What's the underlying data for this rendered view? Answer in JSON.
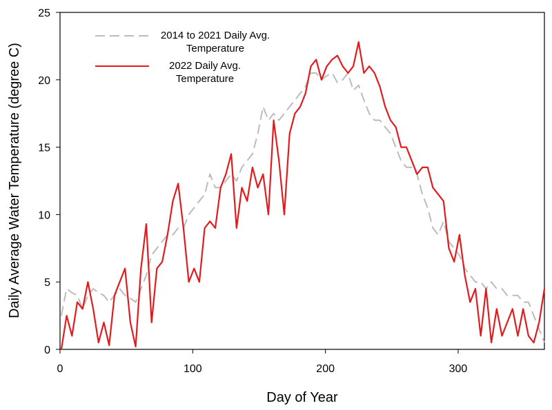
{
  "chart_data": {
    "type": "line",
    "x_label": "Day of Year",
    "y_label": "Daily Average Water Temperature (degree C)",
    "x": [
      1,
      5,
      9,
      13,
      17,
      21,
      25,
      29,
      33,
      37,
      41,
      45,
      49,
      53,
      57,
      61,
      65,
      69,
      73,
      77,
      81,
      85,
      89,
      93,
      97,
      101,
      105,
      109,
      113,
      117,
      121,
      125,
      129,
      133,
      137,
      141,
      145,
      149,
      153,
      157,
      161,
      165,
      169,
      173,
      177,
      181,
      185,
      189,
      193,
      197,
      201,
      205,
      209,
      213,
      217,
      221,
      225,
      229,
      233,
      237,
      241,
      245,
      249,
      253,
      257,
      261,
      265,
      269,
      273,
      277,
      281,
      285,
      289,
      293,
      297,
      301,
      305,
      309,
      313,
      317,
      321,
      325,
      329,
      333,
      337,
      341,
      345,
      349,
      353,
      357,
      361,
      365
    ],
    "series": [
      {
        "name": "2014 to 2021 Daily Avg. Temperature",
        "color": "#bbbbbb",
        "dashed": true,
        "values": [
          2.5,
          4.5,
          4.2,
          4,
          3,
          4,
          4.5,
          4.2,
          4,
          3.5,
          4,
          4.5,
          4,
          3.8,
          3.5,
          4.5,
          5.5,
          7,
          7.5,
          8,
          8.5,
          8.5,
          9,
          9,
          10,
          10.5,
          11,
          11.5,
          13,
          12,
          12,
          12.5,
          13,
          12.5,
          13.5,
          14,
          14.5,
          16,
          18,
          17,
          17.5,
          17,
          17.5,
          18,
          18.5,
          19,
          19.5,
          20.5,
          20.5,
          20,
          20.3,
          20.5,
          19.8,
          20,
          20.5,
          19.2,
          19.6,
          18.5,
          17.5,
          17,
          17,
          16.5,
          16,
          15,
          14,
          13.5,
          13.5,
          13,
          11.5,
          10.5,
          9,
          8.5,
          9.5,
          8,
          7.5,
          7,
          6,
          5.5,
          5,
          5,
          4.5,
          5,
          4.5,
          4.5,
          4,
          4,
          4,
          3.5,
          3.5,
          2.5,
          1.5,
          0.5
        ]
      },
      {
        "name": "2022 Daily Avg. Temperature",
        "color": "#e31a1c",
        "dashed": false,
        "values": [
          0,
          2.5,
          1,
          3.5,
          3,
          5,
          3,
          0.5,
          2,
          0.3,
          4,
          5,
          6,
          2,
          0.2,
          6,
          9.3,
          2,
          6,
          6.5,
          8.5,
          11,
          12.3,
          9,
          5,
          6,
          5,
          9,
          9.5,
          9,
          12,
          13,
          14.5,
          9,
          12,
          11,
          13.5,
          12,
          13,
          10,
          17,
          14,
          10,
          16,
          17.5,
          18,
          19,
          21,
          21.5,
          20,
          21,
          21.5,
          21.8,
          21,
          20.5,
          21,
          22.8,
          20.5,
          21,
          20.5,
          19.5,
          18,
          17,
          16.5,
          15,
          15,
          14,
          13,
          13.5,
          13.5,
          12,
          11.5,
          11,
          7.5,
          6.5,
          8.5,
          5.5,
          3.5,
          4.5,
          1,
          4.5,
          0.5,
          3,
          1,
          2,
          3,
          1,
          3,
          1,
          0.5,
          2,
          4.5
        ]
      }
    ],
    "xlim": [
      0,
      365
    ],
    "ylim": [
      0,
      25
    ],
    "xticks": [
      0,
      100,
      200,
      300
    ],
    "yticks": [
      0,
      5,
      10,
      15,
      20,
      25
    ]
  }
}
